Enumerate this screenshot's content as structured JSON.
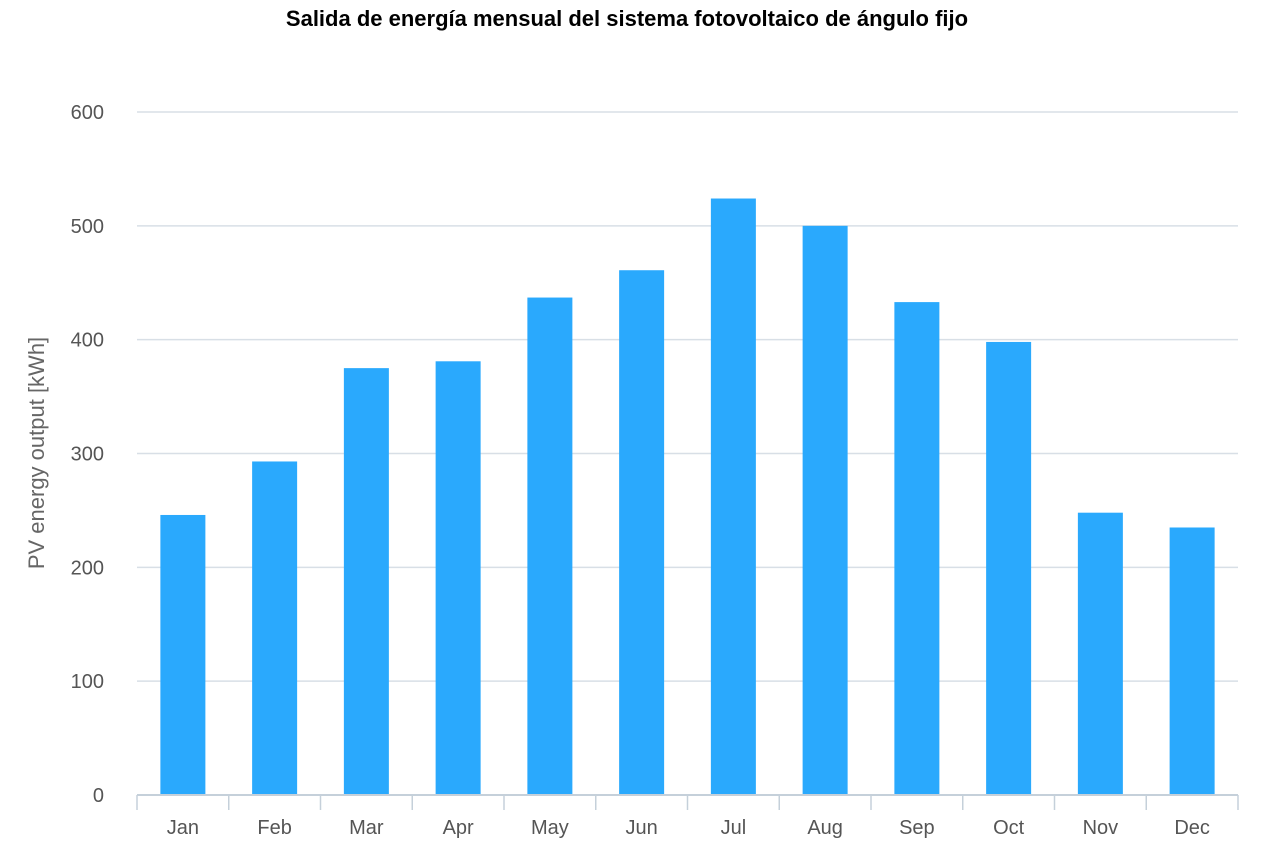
{
  "chart_data": {
    "type": "bar",
    "title": "Salida de energía mensual del sistema fotovoltaico de ángulo fijo",
    "xlabel": "",
    "ylabel": "PV energy output [kWh]",
    "categories": [
      "Jan",
      "Feb",
      "Mar",
      "Apr",
      "May",
      "Jun",
      "Jul",
      "Aug",
      "Sep",
      "Oct",
      "Nov",
      "Dec"
    ],
    "values": [
      246,
      293,
      375,
      381,
      437,
      461,
      524,
      500,
      433,
      398,
      248,
      235
    ],
    "ylim": [
      0,
      600
    ],
    "yticks": [
      "0",
      "100",
      "200",
      "300",
      "400",
      "500",
      "600"
    ],
    "grid": true,
    "legend": "none",
    "colors": {
      "bar": "#2aa9fd",
      "grid": "#d8dfe6",
      "axis": "#c5d0da",
      "text": "#555555"
    }
  }
}
